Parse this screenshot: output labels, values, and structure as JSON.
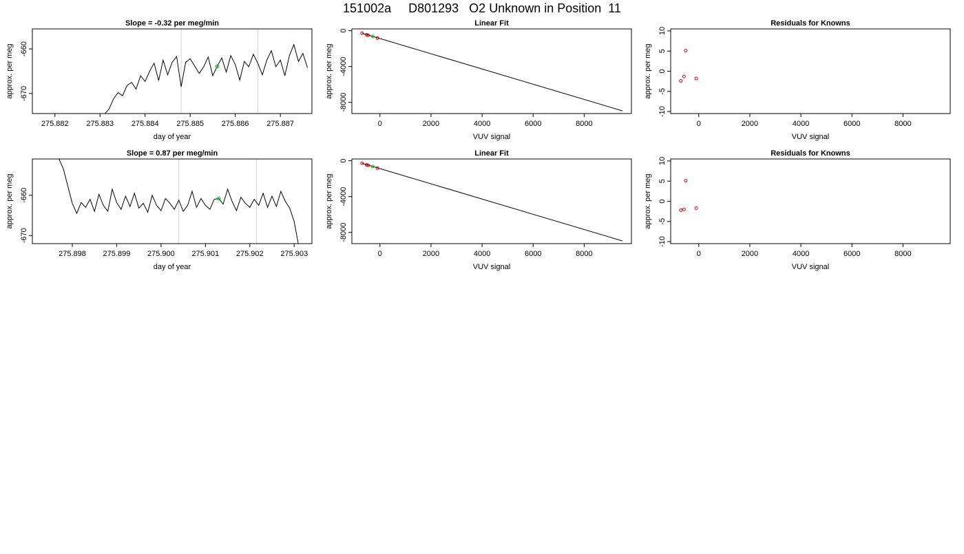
{
  "figure": {
    "title": "151002a     D801293   O2 Unknown in Position  11"
  },
  "chart_data": [
    {
      "type": "line",
      "title": "Slope =  -0.32  per meg/min",
      "xlabel": "day of year",
      "ylabel": "approx. per meg",
      "xlim": [
        275.8815,
        275.8877
      ],
      "ylim": [
        -674.5,
        -655.5
      ],
      "xticks": [
        "275.882",
        "275.883",
        "275.884",
        "275.885",
        "275.886",
        "275.887"
      ],
      "yticks": [
        "-660",
        "-670"
      ],
      "vlines": [
        275.8848,
        275.8865
      ],
      "highlight": [
        275.8856,
        -663.9
      ],
      "series": [
        {
          "x": [
            275.8831,
            275.8832,
            275.8833,
            275.8834,
            275.8835,
            275.8836,
            275.8837,
            275.8838,
            275.8839,
            275.884,
            275.8841,
            275.8842,
            275.8843,
            275.8844,
            275.8845,
            275.8846,
            275.8847,
            275.8848,
            275.8849,
            275.885,
            275.8851,
            275.8852,
            275.8853,
            275.8854,
            275.8855,
            275.8856,
            275.8857,
            275.8858,
            275.8859,
            275.886,
            275.8861,
            275.8862,
            275.8863,
            275.8864,
            275.8865,
            275.8866,
            275.8867,
            275.8868,
            275.8869,
            275.887,
            275.8871,
            275.8872,
            275.8873,
            275.8874,
            275.8875,
            275.8876
          ],
          "y": [
            -674.6,
            -673.5,
            -671.2,
            -669.8,
            -670.5,
            -668.2,
            -667.5,
            -669.0,
            -666.0,
            -667.3,
            -665.0,
            -663.2,
            -667.1,
            -662.5,
            -665.8,
            -663.0,
            -661.7,
            -668.5,
            -663.0,
            -662.2,
            -663.8,
            -665.5,
            -664.0,
            -661.8,
            -666.0,
            -663.9,
            -662.0,
            -665.2,
            -661.5,
            -663.5,
            -667.0,
            -662.8,
            -664.0,
            -661.2,
            -663.2,
            -665.8,
            -662.5,
            -660.4,
            -664.0,
            -662.5,
            -666.0,
            -661.5,
            -659.0,
            -662.8,
            -661.0,
            -664.2
          ]
        }
      ]
    },
    {
      "type": "line",
      "title": "Linear Fit",
      "xlabel": "VUV signal",
      "ylabel": "approx. per meg",
      "xlim": [
        -1100,
        9850
      ],
      "ylim": [
        -9250,
        200
      ],
      "xticks": [
        "0",
        "2000",
        "4000",
        "6000",
        "8000"
      ],
      "yticks": [
        "0",
        "-4000",
        "-8000"
      ],
      "fit_line": {
        "x": [
          -700,
          9500
        ],
        "y": [
          -280,
          -8950
        ]
      },
      "knowns": {
        "x": [
          -700,
          -520,
          -460,
          -100
        ],
        "y": [
          -280,
          -460,
          -510,
          -830
        ]
      },
      "unknown": {
        "x": [
          -280
        ],
        "y": [
          -640
        ]
      }
    },
    {
      "type": "scatter",
      "title": "Residuals for Knowns",
      "xlabel": "VUV signal",
      "ylabel": "approx. per meg",
      "xlim": [
        -1100,
        9850
      ],
      "ylim": [
        -10.5,
        10.5
      ],
      "xticks": [
        "0",
        "2000",
        "4000",
        "6000",
        "8000"
      ],
      "yticks": [
        "-10",
        "-5",
        "0",
        "5",
        "10"
      ],
      "points": {
        "x": [
          -700,
          -580,
          -510,
          -100
        ],
        "y": [
          -2.4,
          -1.3,
          5.1,
          -1.8
        ]
      }
    },
    {
      "type": "line",
      "title": "Slope =  0.87  per meg/min",
      "xlabel": "day of year",
      "ylabel": "approx. per meg",
      "xlim": [
        275.8971,
        275.9034
      ],
      "ylim": [
        -672.0,
        -651.0
      ],
      "xticks": [
        "275.898",
        "275.899",
        "275.900",
        "275.901",
        "275.902",
        "275.903"
      ],
      "yticks": [
        "-660",
        "-670"
      ],
      "vlines": [
        275.9004,
        275.90215
      ],
      "highlight": [
        275.9013,
        -660.8
      ],
      "series": [
        {
          "x": [
            275.8977,
            275.8978,
            275.8979,
            275.898,
            275.8981,
            275.8982,
            275.8983,
            275.8984,
            275.8985,
            275.8986,
            275.8987,
            275.8988,
            275.8989,
            275.899,
            275.8991,
            275.8992,
            275.8993,
            275.8994,
            275.8995,
            275.8996,
            275.8997,
            275.8998,
            275.8999,
            275.9,
            275.9001,
            275.9002,
            275.9003,
            275.9004,
            275.9005,
            275.9006,
            275.9007,
            275.9008,
            275.9009,
            275.901,
            275.9011,
            275.9012,
            275.9013,
            275.9014,
            275.9015,
            275.9016,
            275.9017,
            275.9018,
            275.9019,
            275.902,
            275.9021,
            275.9022,
            275.9023,
            275.9024,
            275.9025,
            275.9026,
            275.9027,
            275.9028,
            275.9029,
            275.903,
            275.9031
          ],
          "y": [
            -651.0,
            -653.5,
            -657.8,
            -662.0,
            -664.5,
            -661.8,
            -663.0,
            -661.0,
            -664.0,
            -659.8,
            -662.5,
            -664.0,
            -658.5,
            -661.8,
            -663.5,
            -660.2,
            -662.8,
            -659.5,
            -663.2,
            -662.0,
            -664.2,
            -660.0,
            -662.5,
            -663.8,
            -660.8,
            -662.0,
            -663.5,
            -661.2,
            -664.0,
            -662.5,
            -659.0,
            -663.0,
            -660.8,
            -662.5,
            -663.5,
            -661.0,
            -660.8,
            -662.2,
            -658.5,
            -661.5,
            -663.8,
            -660.5,
            -662.0,
            -663.0,
            -661.0,
            -662.5,
            -659.5,
            -663.0,
            -660.2,
            -662.8,
            -659.0,
            -661.5,
            -663.2,
            -666.5,
            -672.5
          ]
        }
      ]
    },
    {
      "type": "line",
      "title": "Linear Fit",
      "xlabel": "VUV signal",
      "ylabel": "approx. per meg",
      "xlim": [
        -1100,
        9850
      ],
      "ylim": [
        -9250,
        200
      ],
      "xticks": [
        "0",
        "2000",
        "4000",
        "6000",
        "8000"
      ],
      "yticks": [
        "0",
        "-4000",
        "-8000"
      ],
      "fit_line": {
        "x": [
          -700,
          9500
        ],
        "y": [
          -280,
          -8950
        ]
      },
      "knowns": {
        "x": [
          -700,
          -520,
          -460,
          -100
        ],
        "y": [
          -280,
          -460,
          -510,
          -830
        ]
      },
      "unknown": {
        "x": [
          -280
        ],
        "y": [
          -640
        ]
      }
    },
    {
      "type": "scatter",
      "title": "Residuals for Knowns",
      "xlabel": "VUV signal",
      "ylabel": "approx. per meg",
      "xlim": [
        -1100,
        9850
      ],
      "ylim": [
        -10.5,
        10.5
      ],
      "xticks": [
        "0",
        "2000",
        "4000",
        "6000",
        "8000"
      ],
      "yticks": [
        "-10",
        "-5",
        "0",
        "5",
        "10"
      ],
      "points": {
        "x": [
          -700,
          -580,
          -510,
          -100
        ],
        "y": [
          -2.2,
          -2.0,
          5.1,
          -1.7
        ]
      }
    }
  ],
  "colors": {
    "line": "#000000",
    "fit_line": "#000000",
    "known_point": "#cc0000",
    "unknown_point": "#00cc00",
    "vline": "#d3d3d3",
    "frame": "#000000"
  }
}
